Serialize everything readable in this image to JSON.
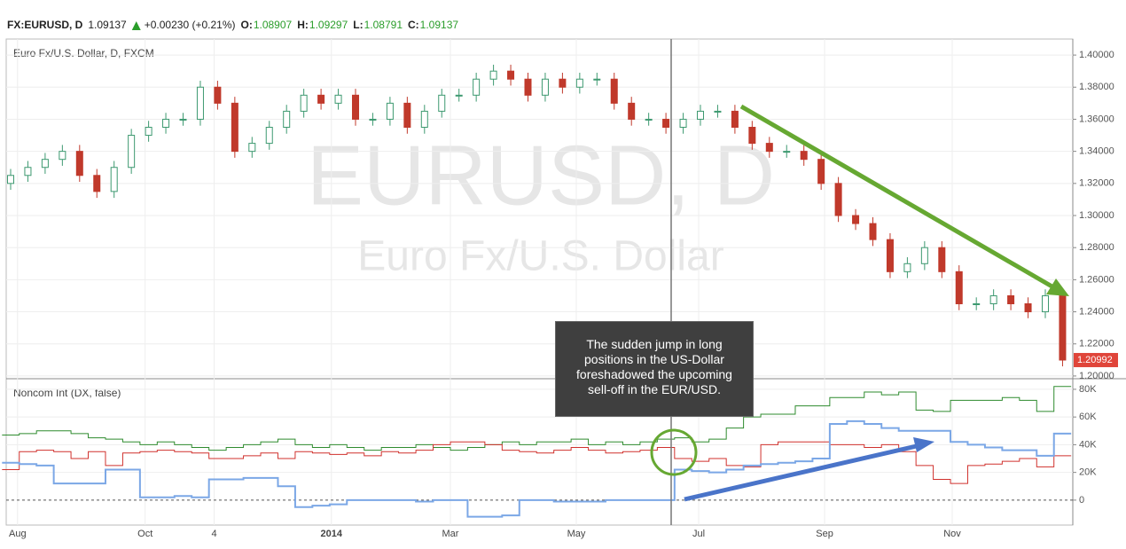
{
  "header": {
    "symbol": "FX:EURUSD, D",
    "price": "1.09137",
    "change": "+0.00230 (+0.21%)",
    "ohlc": [
      {
        "label": "O:",
        "value": "1.08907"
      },
      {
        "label": "H:",
        "value": "1.09297"
      },
      {
        "label": "L:",
        "value": "1.08791"
      },
      {
        "label": "C:",
        "value": "1.09137"
      }
    ]
  },
  "note": "The sudden jump in long positions in the US-Dollar foreshadowed the upcoming sell-off in the EUR/USD.",
  "chart_data": [
    {
      "type": "candlestick",
      "title": "Euro Fx/U.S. Dollar, D, FXCM",
      "watermark_title": "EURUSD, D",
      "watermark_subtitle": "Euro Fx/U.S. Dollar",
      "up_color": "#3d9970",
      "down_color": "#c0392b",
      "open": [
        1.32,
        1.325,
        1.33,
        1.335,
        1.34,
        1.325,
        1.315,
        1.33,
        1.35,
        1.355,
        1.36,
        1.36,
        1.38,
        1.37,
        1.34,
        1.345,
        1.355,
        1.365,
        1.375,
        1.37,
        1.375,
        1.36,
        1.36,
        1.37,
        1.355,
        1.365,
        1.375,
        1.375,
        1.385,
        1.39,
        1.385,
        1.375,
        1.385,
        1.38,
        1.385,
        1.385,
        1.37,
        1.36,
        1.36,
        1.355,
        1.36,
        1.365,
        1.365,
        1.355,
        1.345,
        1.34,
        1.34,
        1.335,
        1.32,
        1.3,
        1.295,
        1.285,
        1.265,
        1.27,
        1.28,
        1.265,
        1.245,
        1.245,
        1.25,
        1.245,
        1.24,
        1.25
      ],
      "high": [
        1.329,
        1.334,
        1.339,
        1.344,
        1.344,
        1.329,
        1.334,
        1.354,
        1.359,
        1.364,
        1.364,
        1.384,
        1.384,
        1.374,
        1.349,
        1.359,
        1.369,
        1.379,
        1.379,
        1.379,
        1.379,
        1.364,
        1.374,
        1.374,
        1.369,
        1.379,
        1.379,
        1.389,
        1.394,
        1.394,
        1.389,
        1.389,
        1.389,
        1.389,
        1.389,
        1.389,
        1.374,
        1.364,
        1.364,
        1.364,
        1.369,
        1.369,
        1.369,
        1.359,
        1.349,
        1.344,
        1.344,
        1.339,
        1.324,
        1.304,
        1.299,
        1.289,
        1.274,
        1.284,
        1.284,
        1.269,
        1.249,
        1.254,
        1.254,
        1.249,
        1.254,
        1.254
      ],
      "low": [
        1.316,
        1.321,
        1.326,
        1.331,
        1.321,
        1.311,
        1.311,
        1.326,
        1.346,
        1.351,
        1.356,
        1.356,
        1.366,
        1.336,
        1.336,
        1.341,
        1.351,
        1.361,
        1.366,
        1.366,
        1.356,
        1.356,
        1.356,
        1.351,
        1.351,
        1.361,
        1.371,
        1.371,
        1.381,
        1.381,
        1.371,
        1.371,
        1.376,
        1.376,
        1.381,
        1.366,
        1.356,
        1.356,
        1.351,
        1.351,
        1.356,
        1.361,
        1.351,
        1.341,
        1.336,
        1.336,
        1.331,
        1.316,
        1.296,
        1.291,
        1.281,
        1.261,
        1.261,
        1.266,
        1.261,
        1.241,
        1.241,
        1.241,
        1.241,
        1.236,
        1.236,
        1.206
      ],
      "close": [
        1.325,
        1.33,
        1.335,
        1.34,
        1.325,
        1.315,
        1.33,
        1.35,
        1.355,
        1.36,
        1.36,
        1.38,
        1.37,
        1.34,
        1.345,
        1.355,
        1.365,
        1.375,
        1.37,
        1.375,
        1.36,
        1.36,
        1.37,
        1.355,
        1.365,
        1.375,
        1.375,
        1.385,
        1.39,
        1.385,
        1.375,
        1.385,
        1.38,
        1.385,
        1.385,
        1.37,
        1.36,
        1.36,
        1.355,
        1.36,
        1.365,
        1.365,
        1.355,
        1.345,
        1.34,
        1.34,
        1.335,
        1.32,
        1.3,
        1.295,
        1.285,
        1.265,
        1.27,
        1.28,
        1.265,
        1.245,
        1.245,
        1.25,
        1.245,
        1.24,
        1.25,
        1.20992
      ],
      "last_value_label": "1.20992",
      "ylim": [
        1.1983,
        1.41
      ],
      "yticks": [
        {
          "value": 1.2,
          "label": "1.20000"
        },
        {
          "value": 1.22,
          "label": "1.22000"
        },
        {
          "value": 1.24,
          "label": "1.24000"
        },
        {
          "value": 1.26,
          "label": "1.26000"
        },
        {
          "value": 1.28,
          "label": "1.28000"
        },
        {
          "value": 1.3,
          "label": "1.30000"
        },
        {
          "value": 1.32,
          "label": "1.32000"
        },
        {
          "value": 1.34,
          "label": "1.34000"
        },
        {
          "value": 1.36,
          "label": "1.36000"
        },
        {
          "value": 1.38,
          "label": "1.38000"
        },
        {
          "value": 1.4,
          "label": "1.40000"
        }
      ],
      "grid": true
    },
    {
      "type": "step",
      "title": "Noncom Int (DX, false)",
      "series": [
        {
          "color": "#2e8b2e",
          "values": [
            47000,
            48000,
            50000,
            50000,
            48000,
            45000,
            44000,
            42000,
            40000,
            42000,
            40000,
            38000,
            36000,
            38000,
            40000,
            42000,
            44000,
            40000,
            38000,
            40000,
            38000,
            36000,
            38000,
            38000,
            40000,
            38000,
            36000,
            38000,
            40000,
            42000,
            40000,
            42000,
            42000,
            44000,
            40000,
            42000,
            40000,
            42000,
            44000,
            45000,
            42000,
            44000,
            52000,
            60000,
            62000,
            62000,
            68000,
            68000,
            74000,
            74000,
            78000,
            76000,
            78000,
            65000,
            64000,
            72000,
            72000,
            72000,
            74000,
            72000,
            64000,
            82000
          ]
        },
        {
          "color": "#d0312d",
          "values": [
            22000,
            35000,
            36000,
            35000,
            30000,
            35000,
            25000,
            34000,
            35000,
            36000,
            35000,
            34000,
            30000,
            30000,
            32000,
            34000,
            30000,
            35000,
            34000,
            33000,
            34000,
            32000,
            35000,
            34000,
            36000,
            40000,
            42000,
            42000,
            40000,
            36000,
            35000,
            34000,
            36000,
            38000,
            36000,
            34000,
            35000,
            36000,
            38000,
            30000,
            28000,
            30000,
            25000,
            24000,
            40000,
            42000,
            42000,
            42000,
            40000,
            40000,
            38000,
            40000,
            35000,
            25000,
            15000,
            12000,
            25000,
            26000,
            28000,
            30000,
            24000,
            32000
          ]
        },
        {
          "color": "#7ba7e6",
          "values": [
            27000,
            26000,
            25000,
            12000,
            12000,
            12000,
            22000,
            22000,
            2000,
            2000,
            3000,
            2000,
            15000,
            15000,
            16000,
            16000,
            10000,
            -5000,
            -4000,
            -3000,
            0,
            0,
            0,
            0,
            -1000,
            0,
            0,
            -12000,
            -12000,
            -11000,
            0,
            0,
            -1000,
            -1000,
            -1000,
            0,
            0,
            0,
            0,
            22000,
            21000,
            20000,
            22000,
            25000,
            26000,
            27000,
            28000,
            30000,
            55000,
            57000,
            55000,
            52000,
            50000,
            50000,
            50000,
            42000,
            40000,
            38000,
            36000,
            36000,
            32000,
            48000
          ]
        }
      ],
      "ylim": [
        -18000,
        87000
      ],
      "yticks": [
        0,
        {
          "value": 20000,
          "label": "20K"
        },
        {
          "value": 40000,
          "label": "40K"
        },
        {
          "value": 60000,
          "label": "60K"
        },
        {
          "value": 80000,
          "label": "80K"
        }
      ],
      "xticks": [
        {
          "value": 0.4,
          "label": "Aug"
        },
        {
          "value": 7.8,
          "label": "Oct"
        },
        {
          "value": 11.8,
          "label": "4"
        },
        {
          "value": 18.6,
          "label": "2014"
        },
        {
          "value": 25.5,
          "label": "Mar"
        },
        {
          "value": 32.8,
          "label": "May"
        },
        {
          "value": 39.9,
          "label": "Jul"
        },
        {
          "value": 47.2,
          "label": "Sep"
        },
        {
          "value": 54.6,
          "label": "Nov"
        }
      ]
    }
  ]
}
